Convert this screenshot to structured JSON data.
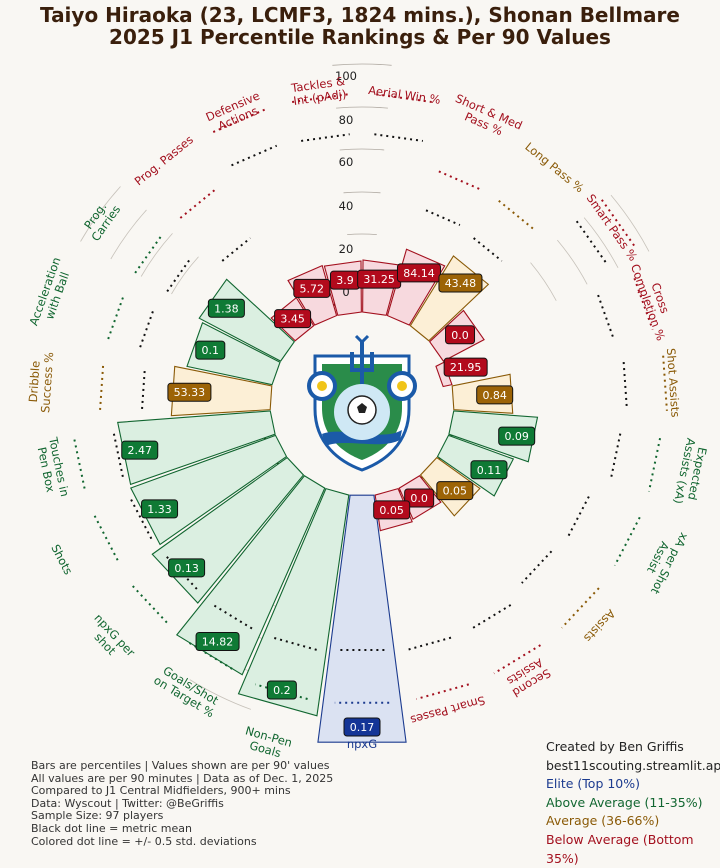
{
  "title": {
    "line1": "Taiyo Hiraoka (23, LCMF3, 1824 mins.), Shonan Bellmare",
    "line2": "2025 J1 Percentile Rankings & Per 90 Values"
  },
  "chart_data": {
    "type": "radial-bar",
    "rlim": [
      0,
      100
    ],
    "ring_labels": [
      "0",
      "20",
      "40",
      "60",
      "80",
      "100"
    ],
    "center_logo": "shonan-bellmare-crest",
    "colors": {
      "elite": "#1c3b8f",
      "above": "#116630",
      "average": "#8a5a07",
      "below": "#a3101e"
    },
    "metrics": [
      {
        "label": "npxG",
        "value": "0.17",
        "tier": "elite"
      },
      {
        "label": "Non-Pen Goals",
        "value": "0.2",
        "tier": "above"
      },
      {
        "label": "Goals/Shot on Target %",
        "value": "14.82",
        "tier": "above"
      },
      {
        "label": "npxG per shot",
        "value": "0.13",
        "tier": "above"
      },
      {
        "label": "Shots",
        "value": "1.33",
        "tier": "above"
      },
      {
        "label": "Touches in Pen Box",
        "value": "2.47",
        "tier": "above"
      },
      {
        "label": "Dribble Success %",
        "value": "53.33",
        "tier": "average"
      },
      {
        "label": "Acceleration with Ball",
        "value": "0.1",
        "tier": "above"
      },
      {
        "label": "Prog. Carries",
        "value": "1.38",
        "tier": "above"
      },
      {
        "label": "Prog. Passes",
        "value": "3.45",
        "tier": "below"
      },
      {
        "label": "Defensive Actions",
        "value": "5.72",
        "tier": "below"
      },
      {
        "label": "Tackles & Int (pAdj)",
        "value": "3.9",
        "tier": "below"
      },
      {
        "label": "Aerial Win %",
        "value": "31.25",
        "tier": "below"
      },
      {
        "label": "Short & Med Pass %",
        "value": "84.14",
        "tier": "below"
      },
      {
        "label": "Long Pass %",
        "value": "43.48",
        "tier": "average"
      },
      {
        "label": "Smart Pass %",
        "value": "0.0",
        "tier": "below"
      },
      {
        "label": "Cross Completion %",
        "value": "21.95",
        "tier": "below"
      },
      {
        "label": "Shot Assists",
        "value": "0.84",
        "tier": "average"
      },
      {
        "label": "Expected Assists (xA)",
        "value": "0.09",
        "tier": "above"
      },
      {
        "label": "xA per Shot Assist",
        "value": "0.11",
        "tier": "above"
      },
      {
        "label": "Assists",
        "value": "0.05",
        "tier": "average"
      },
      {
        "label": "Second Assists",
        "value": "0.0",
        "tier": "below"
      },
      {
        "label": "Smart Passes",
        "value": "0.05",
        "tier": "below"
      }
    ]
  },
  "footer": {
    "notes": [
      "Bars are percentiles | Values shown are per 90' values",
      "All values are per 90 minutes | Data as of Dec. 1, 2025",
      "Compared to J1 Central Midfielders, 900+ mins",
      "Data: Wyscout | Twitter: @BeGriffis",
      "Sample Size: 97 players",
      "Black dot line = metric mean",
      "Colored dot line = +/- 0.5 std. deviations"
    ],
    "credit_line1": "Created by Ben Griffis",
    "credit_line2": "best11scouting.streamlit.app",
    "legend": [
      {
        "label": "Elite (Top 10%)",
        "color": "#1c3b8f"
      },
      {
        "label": "Above Average (11-35%)",
        "color": "#116630"
      },
      {
        "label": "Average (36-66%)",
        "color": "#8a5a07"
      },
      {
        "label": "Below Average (Bottom 35%)",
        "color": "#a3101e"
      }
    ]
  }
}
